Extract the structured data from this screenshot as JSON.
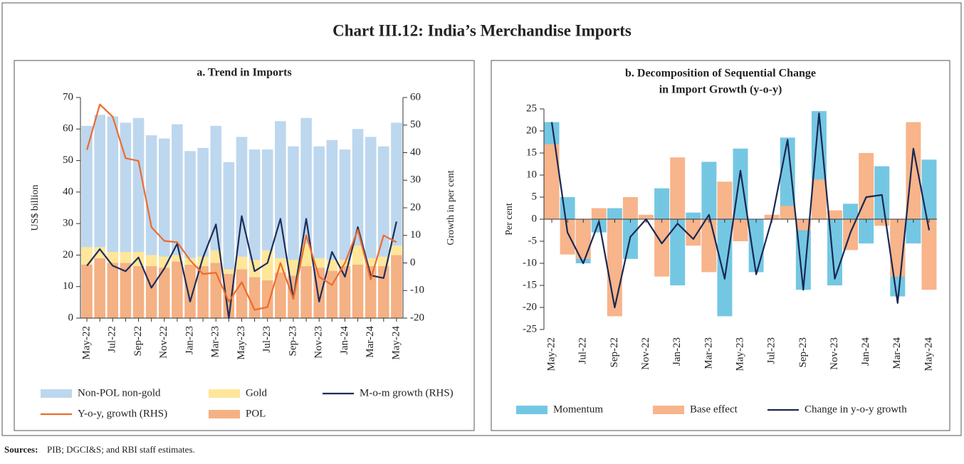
{
  "title": "Chart III.12: India’s Merchandise Imports",
  "sources_label": "Sources:",
  "sources_text": "PIB; DGCI&S; and RBI staff estimates.",
  "chart_data": [
    {
      "type": "bar_line",
      "title": [
        "a. Trend in Imports"
      ],
      "y_label": "US$ billion",
      "y2_label": "Growth in per cent",
      "categories": [
        "May-22",
        null,
        "Jul-22",
        null,
        "Sep-22",
        null,
        "Nov-22",
        null,
        "Jan-23",
        null,
        "Mar-23",
        null,
        "May-23",
        null,
        "Jul-23",
        null,
        "Sep-23",
        null,
        "Nov-23",
        null,
        "Jan-24",
        null,
        "Mar-24",
        null,
        "May-24"
      ],
      "ylim": [
        0,
        70
      ],
      "yticks": [
        0,
        10,
        20,
        30,
        40,
        50,
        60,
        70
      ],
      "y2lim": [
        -20,
        60
      ],
      "y2ticks": [
        -20,
        -10,
        0,
        10,
        20,
        30,
        40,
        50,
        60
      ],
      "series": [
        {
          "name": "Non-POL non-gold",
          "kind": "bar",
          "color": "#bdd7ee",
          "values": [
            38.5,
            42,
            43,
            41,
            42.5,
            38,
            37.5,
            41.5,
            34,
            34.5,
            39.5,
            34,
            38,
            35,
            32,
            43.5,
            36,
            40,
            35.5,
            38,
            35,
            37,
            38.5,
            35,
            39
          ]
        },
        {
          "name": "Gold",
          "kind": "bar",
          "color": "#ffe699",
          "values": [
            5.5,
            3.5,
            3.5,
            3.5,
            4.5,
            3.5,
            3.5,
            2,
            2,
            3,
            4,
            1.5,
            4,
            5.5,
            9.5,
            4.5,
            5,
            7,
            3,
            3.5,
            2,
            6,
            2.5,
            3,
            3
          ]
        },
        {
          "name": "M-o-m growth (RHS)",
          "kind": "line",
          "axis": "y2",
          "color": "#1f2d5a",
          "values": [
            -1,
            5,
            -1,
            -3,
            2,
            -9,
            -2,
            7,
            -14,
            2,
            14,
            -20,
            17,
            -3,
            0,
            16,
            -13,
            16,
            -14,
            4,
            -5,
            13,
            -4.5,
            -5.5,
            15
          ]
        },
        {
          "name": "Y-o-y, growth (RHS)",
          "kind": "line",
          "axis": "y2",
          "color": "#ed6b2d",
          "values": [
            41,
            57.5,
            53,
            38,
            37,
            13,
            8,
            7.5,
            1,
            -4,
            -3.5,
            -14,
            -7,
            -17,
            -16,
            0,
            -13,
            10,
            -5,
            -8,
            0,
            12,
            -6,
            10,
            7.5
          ]
        },
        {
          "name": "POL",
          "kind": "bar",
          "color": "#f4b183",
          "values": [
            17,
            19,
            17.5,
            17.5,
            16.5,
            16.5,
            16,
            18,
            17,
            16.5,
            17.5,
            14,
            15.5,
            13,
            12,
            14.5,
            13.5,
            16.5,
            16,
            15,
            16.5,
            17,
            16.5,
            16.5,
            20
          ]
        }
      ]
    },
    {
      "type": "overlap_bar_line",
      "title": [
        "b. Decomposition of Sequential Change",
        "in Import Growth (y-o-y)"
      ],
      "y_label": "Per cent",
      "categories": [
        "May-22",
        null,
        "Jul-22",
        null,
        "Sep-22",
        null,
        "Nov-22",
        null,
        "Jan-23",
        null,
        "Mar-23",
        null,
        "May-23",
        null,
        "Jul-23",
        null,
        "Sep-23",
        null,
        "Nov-23",
        null,
        "Jan-24",
        null,
        "Mar-24",
        null,
        "May-24"
      ],
      "ylim": [
        -25,
        25
      ],
      "yticks": [
        -25,
        -20,
        -15,
        -10,
        -5,
        0,
        5,
        10,
        15,
        20,
        25
      ],
      "series": [
        {
          "name": "Momentum",
          "kind": "bar",
          "color": "#74c7e3",
          "values": [
            22,
            5,
            -10,
            -3,
            2.5,
            -9,
            0,
            7,
            -15,
            1.5,
            13,
            -22,
            16,
            -12,
            0,
            18.5,
            -16,
            24.5,
            -15,
            3.5,
            -5.5,
            12,
            -17.5,
            -5.5,
            13.5
          ]
        },
        {
          "name": "Base effect",
          "kind": "bar",
          "color": "#f8b48a",
          "values": [
            17,
            -8,
            -9,
            2.5,
            -22,
            5,
            1,
            -13,
            14,
            -6,
            -12,
            8.5,
            -5,
            0,
            1,
            3,
            -2.5,
            9,
            2,
            -7,
            15,
            -1.5,
            -13,
            22,
            -16
          ]
        },
        {
          "name": "Change in y-o-y growth",
          "kind": "line",
          "color": "#1a2752",
          "values": [
            22,
            -3,
            -10,
            -0.5,
            -20,
            -4,
            0,
            -5.5,
            -1,
            -4.5,
            1,
            -13.5,
            11,
            -12.5,
            0,
            18,
            -16,
            24,
            -13.5,
            -3,
            5,
            5.5,
            -19,
            16,
            -2.5
          ]
        }
      ]
    }
  ]
}
